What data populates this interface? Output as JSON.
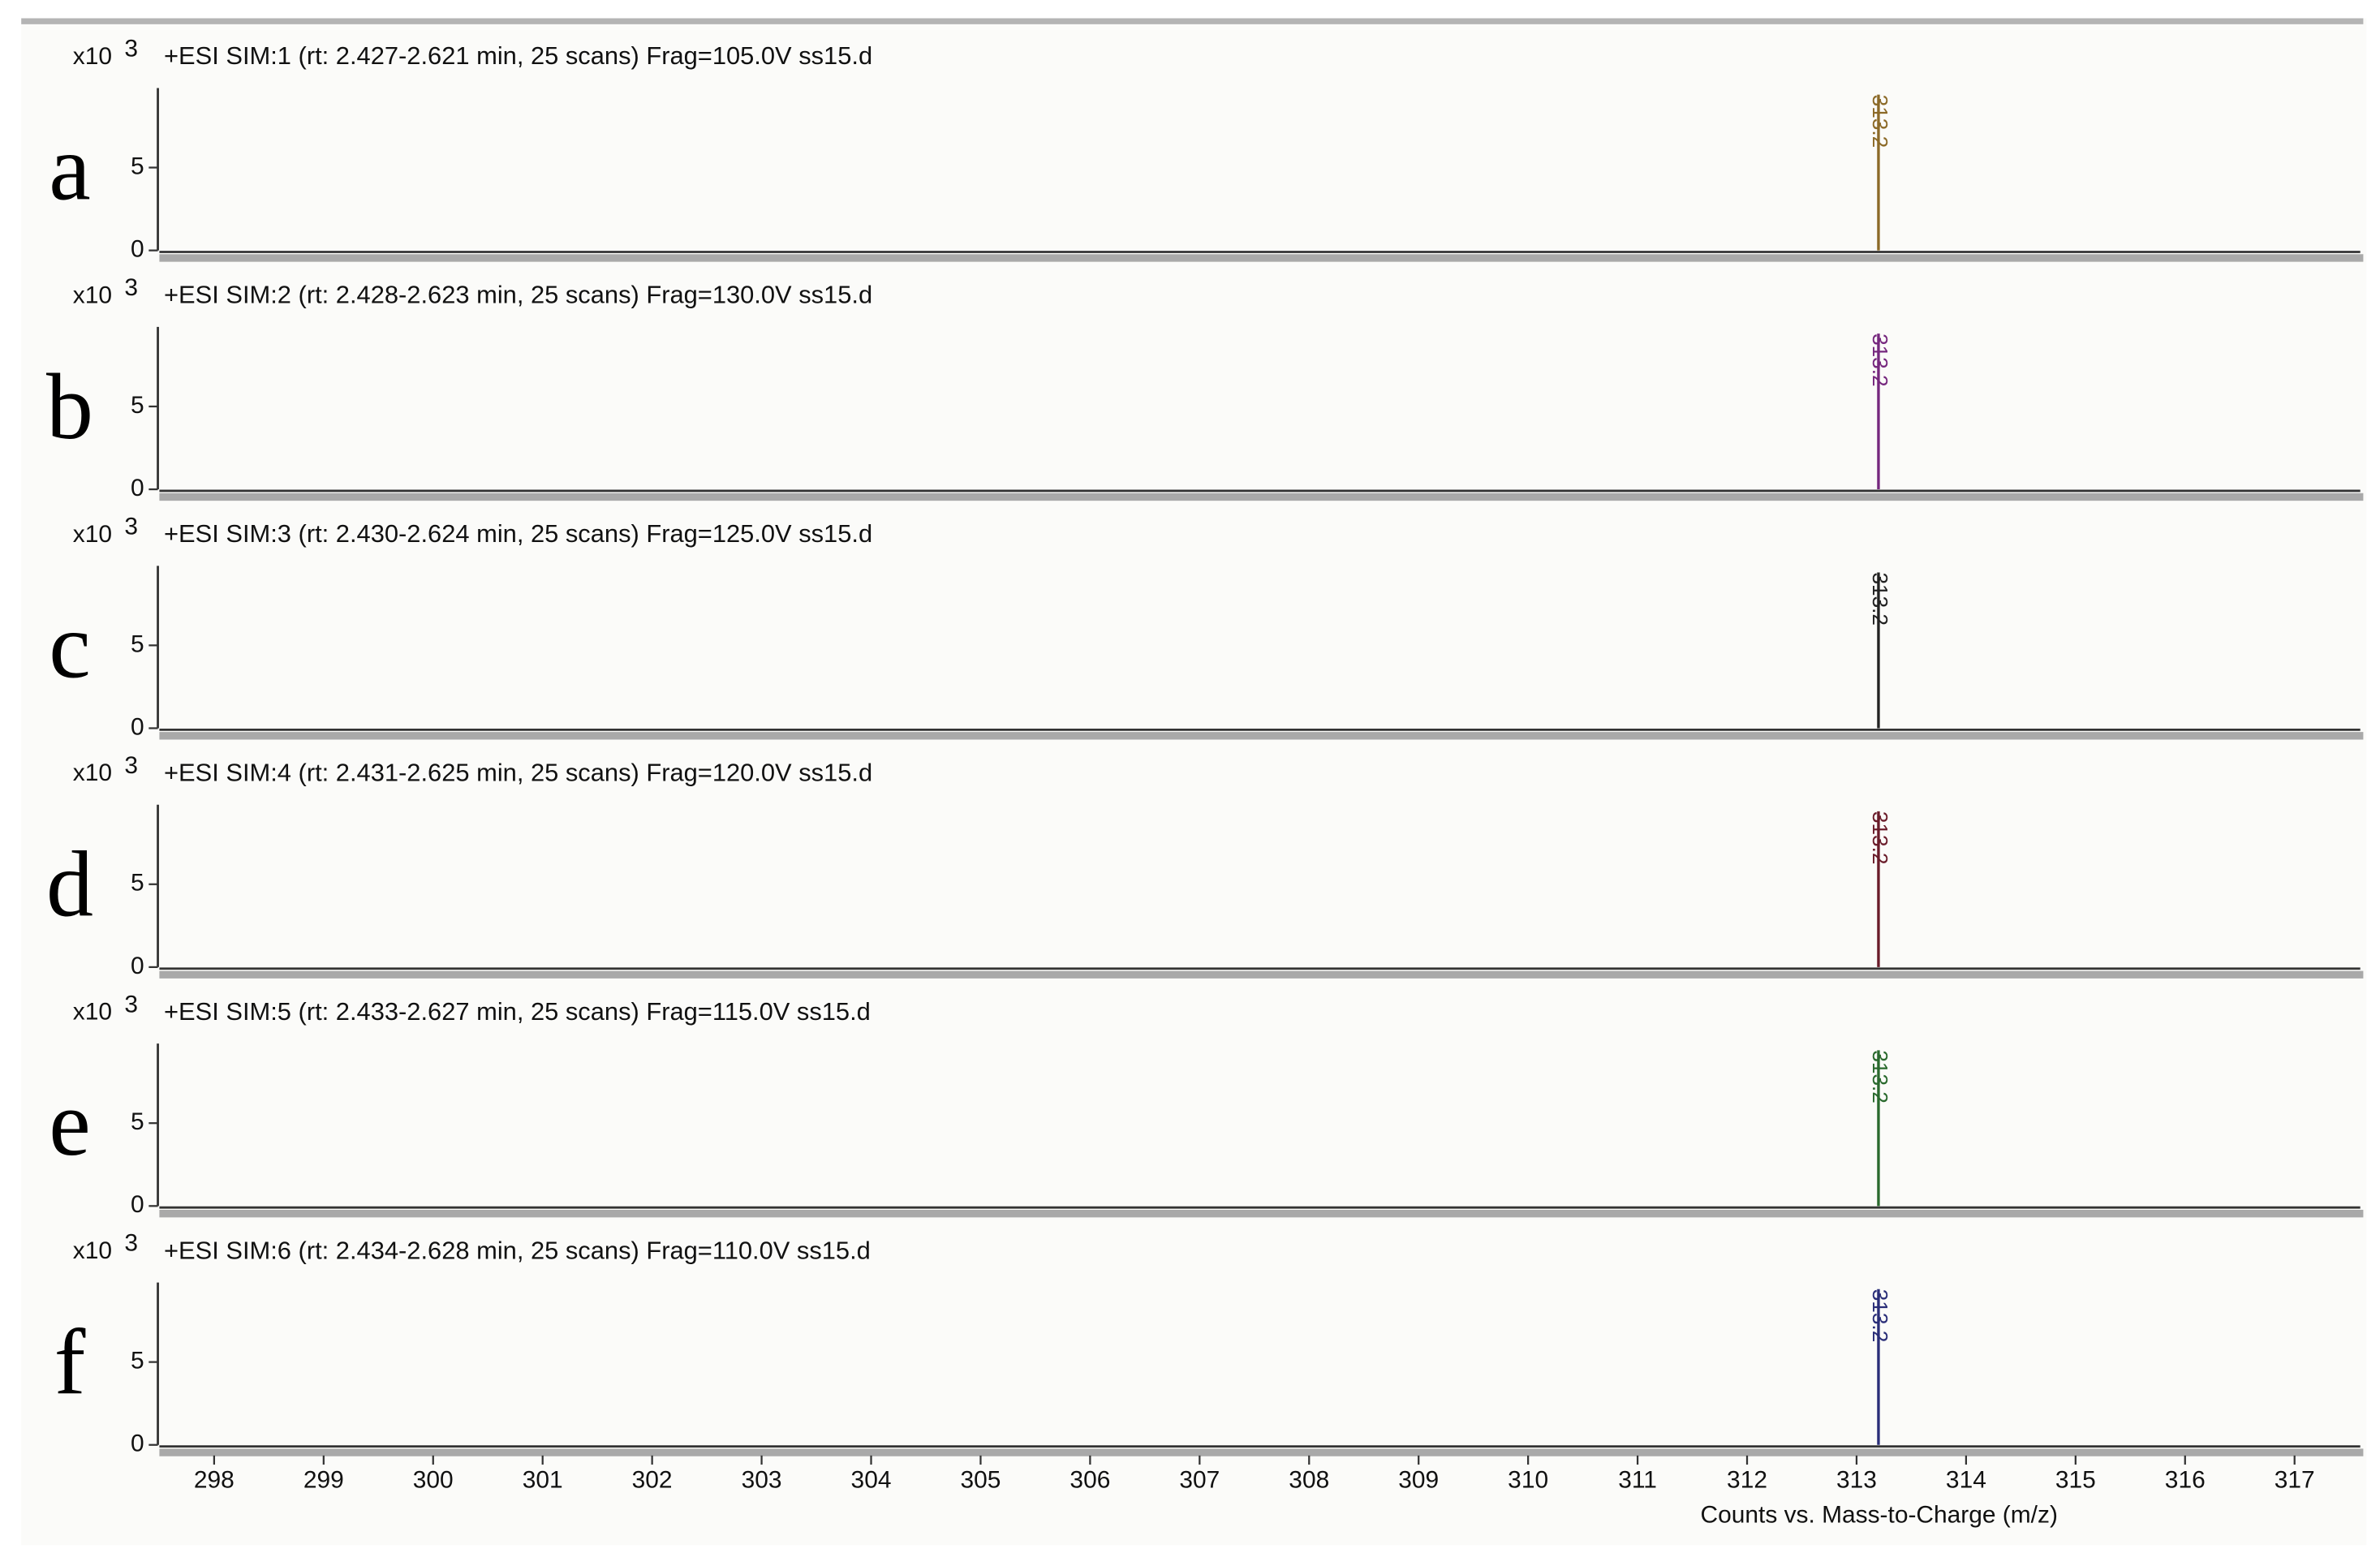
{
  "chart_data": [
    {
      "type": "stem",
      "panel_label": "a",
      "title": "+ESI SIM:1 (rt: 2.427-2.621 min, 25 scans) Frag=105.0V ss15.d",
      "y_unit": "x10",
      "y_unit_exponent": "3",
      "x": [
        313.2
      ],
      "values": [
        9.4
      ],
      "color": "#8c6a28",
      "xlim": [
        297.5,
        317.6
      ],
      "ylim": [
        0,
        9.8
      ],
      "yticks": [
        0,
        5
      ]
    },
    {
      "type": "stem",
      "panel_label": "b",
      "title": "+ESI SIM:2 (rt: 2.428-2.623 min, 25 scans) Frag=130.0V ss15.d",
      "y_unit": "x10",
      "y_unit_exponent": "3",
      "x": [
        313.2
      ],
      "values": [
        9.4
      ],
      "color": "#76287e",
      "xlim": [
        297.5,
        317.6
      ],
      "ylim": [
        0,
        9.8
      ],
      "yticks": [
        0,
        5
      ]
    },
    {
      "type": "stem",
      "panel_label": "c",
      "title": "+ESI SIM:3 (rt: 2.430-2.624 min, 25 scans) Frag=125.0V ss15.d",
      "y_unit": "x10",
      "y_unit_exponent": "3",
      "x": [
        313.2
      ],
      "values": [
        9.4
      ],
      "color": "#222222",
      "xlim": [
        297.5,
        317.6
      ],
      "ylim": [
        0,
        9.8
      ],
      "yticks": [
        0,
        5
      ]
    },
    {
      "type": "stem",
      "panel_label": "d",
      "title": "+ESI SIM:4 (rt: 2.431-2.625 min, 25 scans) Frag=120.0V ss15.d",
      "y_unit": "x10",
      "y_unit_exponent": "3",
      "x": [
        313.2
      ],
      "values": [
        9.4
      ],
      "color": "#6a1c2a",
      "xlim": [
        297.5,
        317.6
      ],
      "ylim": [
        0,
        9.8
      ],
      "yticks": [
        0,
        5
      ]
    },
    {
      "type": "stem",
      "panel_label": "e",
      "title": "+ESI SIM:5 (rt: 2.433-2.627 min, 25 scans) Frag=115.0V ss15.d",
      "y_unit": "x10",
      "y_unit_exponent": "3",
      "x": [
        313.2
      ],
      "values": [
        9.4
      ],
      "color": "#2a6a2e",
      "xlim": [
        297.5,
        317.6
      ],
      "ylim": [
        0,
        9.8
      ],
      "yticks": [
        0,
        5
      ]
    },
    {
      "type": "stem",
      "panel_label": "f",
      "title": "+ESI SIM:6 (rt: 2.434-2.628 min, 25 scans) Frag=110.0V ss15.d",
      "y_unit": "x10",
      "y_unit_exponent": "3",
      "x": [
        313.2
      ],
      "values": [
        9.4
      ],
      "color": "#2a2e78",
      "xlim": [
        297.5,
        317.6
      ],
      "ylim": [
        0,
        9.8
      ],
      "yticks": [
        0,
        5
      ],
      "xticks": [
        298,
        299,
        300,
        301,
        302,
        303,
        304,
        305,
        306,
        307,
        308,
        309,
        310,
        311,
        312,
        313,
        314,
        315,
        316,
        317
      ],
      "xlabel": "Counts vs. Mass-to-Charge (m/z)"
    }
  ]
}
